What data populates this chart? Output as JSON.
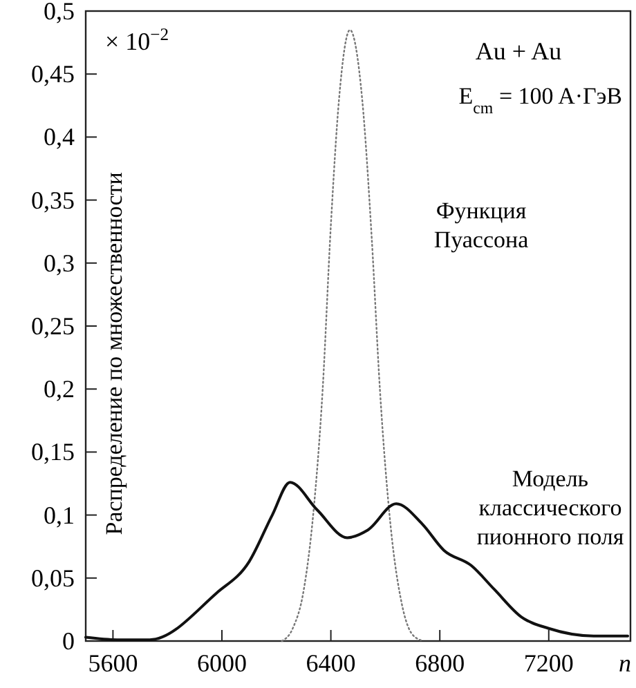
{
  "chart_data": {
    "type": "line",
    "xlabel": "n",
    "ylabel": "Распределение по множественности",
    "annotations": [
      "× 10$^{−2}$",
      "Au + Au",
      "E$_{cm}$ = 100 A·ГэВ"
    ],
    "xlim": [
      5500,
      7500
    ],
    "ylim": [
      0,
      0.5
    ],
    "xticks": [
      5600,
      6000,
      6400,
      6800,
      7200
    ],
    "yticks": [
      {
        "value": 0,
        "label": "0"
      },
      {
        "value": 0.05,
        "label": "0,05"
      },
      {
        "value": 0.1,
        "label": "0,1"
      },
      {
        "value": 0.15,
        "label": "0,15"
      },
      {
        "value": 0.2,
        "label": "0,2"
      },
      {
        "value": 0.25,
        "label": "0,25"
      },
      {
        "value": 0.3,
        "label": "0,3"
      },
      {
        "value": 0.35,
        "label": "0,35"
      },
      {
        "value": 0.4,
        "label": "0,4"
      },
      {
        "value": 0.45,
        "label": "0,45"
      },
      {
        "value": 0.5,
        "label": "0,5"
      }
    ],
    "grid": false,
    "series": [
      {
        "name": "Функция Пуассона",
        "color": "#777777",
        "line_style": "dotted",
        "x": [
          6220,
          6260,
          6300,
          6335,
          6370,
          6400,
          6430,
          6470,
          6515,
          6550,
          6580,
          6620,
          6660,
          6700,
          6740
        ],
        "values": [
          0,
          0.01,
          0.04,
          0.1,
          0.2,
          0.33,
          0.43,
          0.485,
          0.43,
          0.32,
          0.2,
          0.09,
          0.03,
          0.005,
          0
        ]
      },
      {
        "name": "Модель классического пионного поля",
        "color": "#111111",
        "line_style": "solid",
        "x": [
          5500,
          5615,
          5735,
          5980,
          6100,
          6185,
          6250,
          6350,
          6460,
          6535,
          6640,
          6735,
          6815,
          6915,
          7000,
          7100,
          7200,
          7365,
          7490
        ],
        "values": [
          0.003,
          0.001,
          0.001,
          0.038,
          0.063,
          0.1,
          0.126,
          0.104,
          0.082,
          0.088,
          0.109,
          0.093,
          0.072,
          0.06,
          0.041,
          0.019,
          0.01,
          0.004,
          0.004
        ]
      }
    ]
  }
}
